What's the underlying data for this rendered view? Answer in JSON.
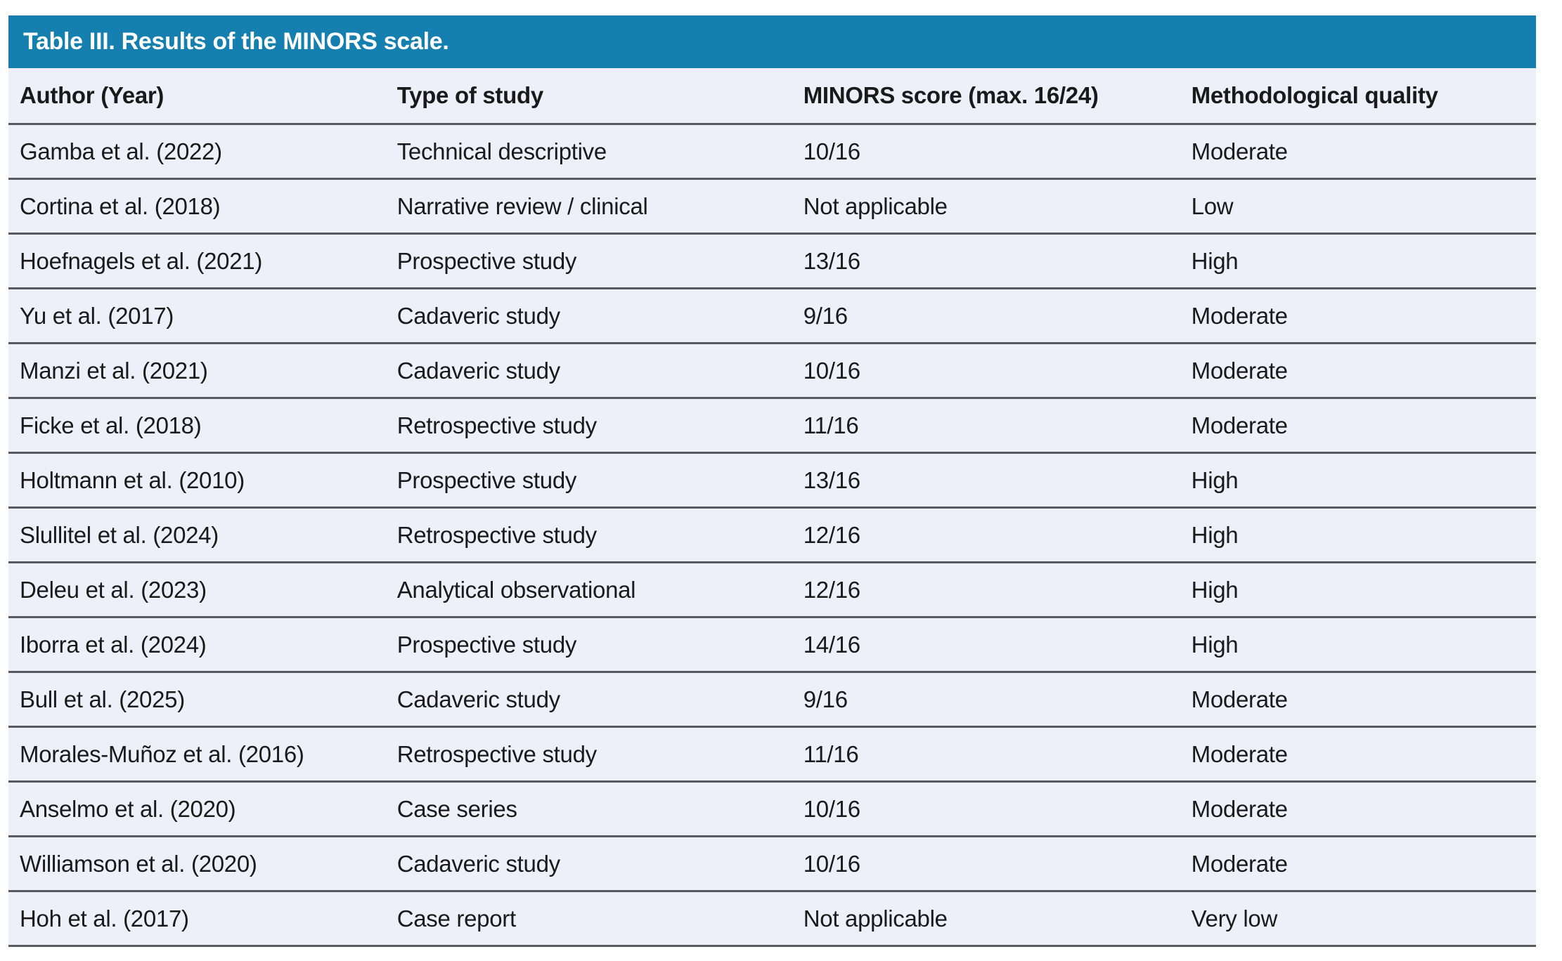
{
  "table": {
    "title": "Table III. Results of the MINORS scale.",
    "columns": [
      "Author (Year)",
      "Type of study",
      "MINORS score (max. 16/24)",
      "Methodological quality"
    ],
    "rows": [
      [
        "Gamba et al. (2022)",
        "Technical descriptive",
        "10/16",
        "Moderate"
      ],
      [
        "Cortina et al. (2018)",
        "Narrative review / clinical",
        "Not applicable",
        "Low"
      ],
      [
        "Hoefnagels et al. (2021)",
        "Prospective study",
        "13/16",
        "High"
      ],
      [
        "Yu et al. (2017)",
        "Cadaveric study",
        "9/16",
        "Moderate"
      ],
      [
        "Manzi et al. (2021)",
        "Cadaveric study",
        "10/16",
        "Moderate"
      ],
      [
        "Ficke et al. (2018)",
        "Retrospective study",
        "11/16",
        "Moderate"
      ],
      [
        "Holtmann et al. (2010)",
        "Prospective study",
        "13/16",
        "High"
      ],
      [
        "Slullitel et al. (2024)",
        "Retrospective study",
        "12/16",
        "High"
      ],
      [
        "Deleu et al. (2023)",
        "Analytical observational",
        "12/16",
        "High"
      ],
      [
        "Iborra et al. (2024)",
        "Prospective study",
        "14/16",
        "High"
      ],
      [
        "Bull et al. (2025)",
        "Cadaveric study",
        "9/16",
        "Moderate"
      ],
      [
        "Morales-Muñoz et al. (2016)",
        "Retrospective study",
        "11/16",
        "Moderate"
      ],
      [
        "Anselmo et al. (2020)",
        "Case series",
        "10/16",
        "Moderate"
      ],
      [
        "Williamson et al. (2020)",
        "Cadaveric study",
        "10/16",
        "Moderate"
      ],
      [
        "Hoh et al. (2017)",
        "Case report",
        "Not applicable",
        "Very low"
      ]
    ],
    "colors": {
      "header_bar": "#1580b0",
      "title_text": "#ffffff",
      "row_bg": "#edf0f8",
      "divider": "#565a5e",
      "text": "#1a1a1a"
    }
  }
}
